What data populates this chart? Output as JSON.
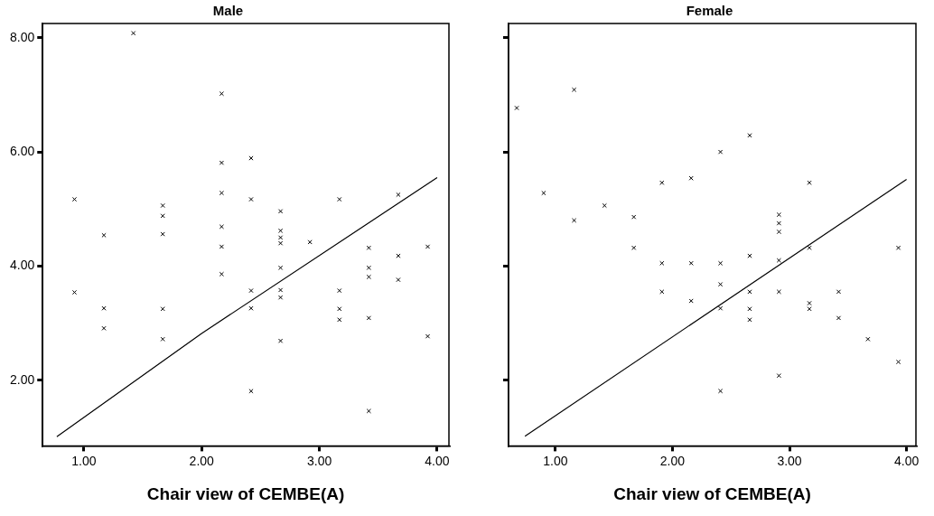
{
  "chart_data": [
    {
      "type": "scatter",
      "title": "Male",
      "xlabel": "Chair view of CEMBE(A)",
      "marker": "cross",
      "grid": false,
      "legend": false,
      "xlim": [
        0.65,
        4.1
      ],
      "ylim": [
        0.85,
        8.25
      ],
      "xticks": [
        {
          "value": 1,
          "label": "1.00"
        },
        {
          "value": 2,
          "label": "2.00"
        },
        {
          "value": 3,
          "label": "3.00"
        },
        {
          "value": 4,
          "label": "4.00"
        }
      ],
      "yticks": [
        {
          "value": 2,
          "label": "2.00"
        },
        {
          "value": 4,
          "label": "4.00"
        },
        {
          "value": 6,
          "label": "6.00"
        },
        {
          "value": 8,
          "label": "8.00"
        }
      ],
      "series": [
        {
          "type": "scatter",
          "color": "#000000",
          "x": [
            0.92,
            0.92,
            1.17,
            1.17,
            1.17,
            1.42,
            1.67,
            1.67,
            1.67,
            1.67,
            1.67,
            2.17,
            2.17,
            2.17,
            2.17,
            2.17,
            2.17,
            2.42,
            2.42,
            2.42,
            2.42,
            2.42,
            2.67,
            2.67,
            2.67,
            2.67,
            2.67,
            2.67,
            2.67,
            2.67,
            2.92,
            3.17,
            3.17,
            3.17,
            3.17,
            3.42,
            3.42,
            3.42,
            3.42,
            3.42,
            3.67,
            3.67,
            3.67,
            3.92,
            3.92
          ],
          "values": [
            5.17,
            3.54,
            4.54,
            3.26,
            2.91,
            8.08,
            5.06,
            4.88,
            4.56,
            3.25,
            2.72,
            7.02,
            5.81,
            5.28,
            4.69,
            4.34,
            3.86,
            5.89,
            5.17,
            3.57,
            3.26,
            1.81,
            4.96,
            4.62,
            4.5,
            4.4,
            3.97,
            3.58,
            3.45,
            2.69,
            4.42,
            5.17,
            3.57,
            3.25,
            3.06,
            4.32,
            3.97,
            3.81,
            3.09,
            1.46,
            5.25,
            4.18,
            3.76,
            4.34,
            2.77
          ]
        },
        {
          "type": "line",
          "color": "#000000",
          "marker": "none",
          "x": [
            0.77,
            2.0,
            4.0
          ],
          "values": [
            1.01,
            2.82,
            5.55
          ]
        }
      ]
    },
    {
      "type": "scatter",
      "title": "Female",
      "xlabel": "Chair view of CEMBE(A)",
      "marker": "cross",
      "grid": false,
      "legend": false,
      "tick_labels": "x",
      "xlim": [
        0.6,
        4.08
      ],
      "ylim": [
        0.85,
        8.25
      ],
      "xticks": [
        {
          "value": 1,
          "label": "1.00"
        },
        {
          "value": 2,
          "label": "2.00"
        },
        {
          "value": 3,
          "label": "3.00"
        },
        {
          "value": 4,
          "label": "4.00"
        }
      ],
      "yticks": [
        {
          "value": 2,
          "label": null
        },
        {
          "value": 4,
          "label": null
        },
        {
          "value": 6,
          "label": null
        },
        {
          "value": 8,
          "label": null
        }
      ],
      "series": [
        {
          "type": "scatter",
          "color": "#000000",
          "x": [
            0.67,
            0.9,
            1.16,
            1.16,
            1.42,
            1.67,
            1.67,
            1.91,
            1.91,
            1.91,
            2.16,
            2.16,
            2.16,
            2.41,
            2.41,
            2.41,
            2.41,
            2.41,
            2.66,
            2.66,
            2.66,
            2.66,
            2.66,
            2.91,
            2.91,
            2.91,
            2.91,
            2.91,
            2.91,
            3.17,
            3.17,
            3.17,
            3.17,
            3.42,
            3.42,
            3.67,
            3.93,
            3.93
          ],
          "values": [
            6.77,
            5.28,
            7.09,
            4.8,
            5.06,
            4.86,
            4.32,
            5.46,
            4.05,
            3.55,
            5.54,
            4.05,
            3.39,
            6.0,
            4.05,
            3.68,
            3.26,
            1.81,
            6.29,
            4.18,
            3.55,
            3.25,
            3.06,
            4.9,
            4.75,
            4.6,
            4.1,
            3.55,
            2.08,
            5.46,
            4.32,
            3.35,
            3.25,
            3.55,
            3.09,
            2.72,
            4.32,
            2.32
          ]
        },
        {
          "type": "line",
          "color": "#000000",
          "marker": "none",
          "x": [
            0.74,
            4.0
          ],
          "values": [
            1.02,
            5.52
          ]
        }
      ]
    }
  ]
}
